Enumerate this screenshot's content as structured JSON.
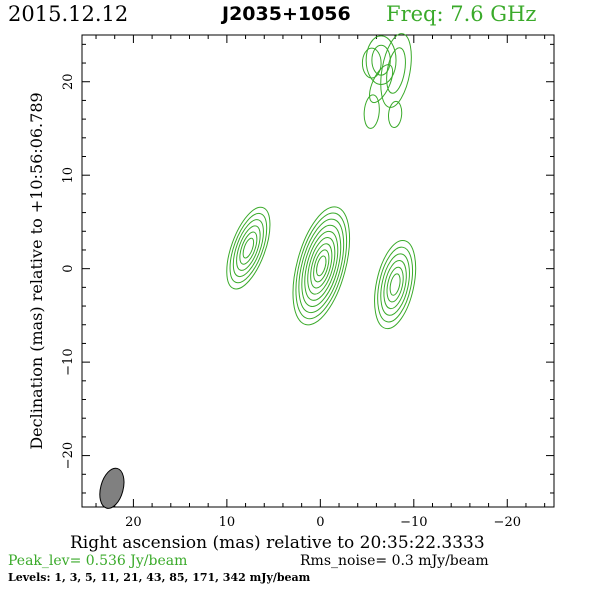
{
  "header": {
    "date": "2015.12.12",
    "source": "J2035+1056",
    "freq": "Freq: 7.6 GHz"
  },
  "footer": {
    "peak": "Peak_lev=  0.536 Jy/beam",
    "rms": "Rms_noise=  0.3 mJy/beam",
    "levels": "Levels:   1,   3,   5,   11,   21,   43,   85,  171,  342  mJy/beam"
  },
  "colors": {
    "contour": "#3aaa2a",
    "beam": "#808080",
    "axes": "#000000"
  },
  "chart_data": {
    "type": "contour",
    "xlabel": "Right ascension (mas) relative to 20:35:22.3333",
    "ylabel": "Declination (mas) relative to +10:56:06.789",
    "xlim": [
      25.5,
      -25
    ],
    "ylim": [
      -25.5,
      25
    ],
    "x_reversed": true,
    "xticks": [
      20,
      10,
      0,
      -10,
      -20
    ],
    "yticks": [
      20,
      10,
      0,
      -10,
      -20
    ],
    "xtick_labels": [
      "20",
      "10",
      "0",
      "−10",
      "−20"
    ],
    "ytick_labels": [
      "20",
      "10",
      "0",
      "−10",
      "−20"
    ],
    "components": [
      {
        "name": "core",
        "x": -0.1,
        "y": 0.3,
        "major": 6.5,
        "minor": 2.6,
        "tilt_deg": 15,
        "n_contours": 9
      },
      {
        "name": "east-jet",
        "x": 7.7,
        "y": 2.2,
        "major": 4.6,
        "minor": 1.8,
        "tilt_deg": 20,
        "n_contours": 6
      },
      {
        "name": "west-jet",
        "x": -8.0,
        "y": -1.7,
        "major": 4.8,
        "minor": 2.0,
        "tilt_deg": 12,
        "n_contours": 6
      },
      {
        "name": "north-a",
        "x": -6.5,
        "y": 22.3,
        "major": 2.6,
        "minor": 1.6,
        "tilt_deg": 0,
        "n_contours": 2
      },
      {
        "name": "north-b",
        "x": -8.1,
        "y": 21.2,
        "major": 4.0,
        "minor": 1.5,
        "tilt_deg": 10,
        "n_contours": 2
      },
      {
        "name": "north-c",
        "x": -5.5,
        "y": 22.0,
        "major": 1.6,
        "minor": 1.0,
        "tilt_deg": 0,
        "n_contours": 1
      },
      {
        "name": "north-d",
        "x": -6.5,
        "y": 19.8,
        "major": 2.2,
        "minor": 0.9,
        "tilt_deg": 25,
        "n_contours": 1
      },
      {
        "name": "north-e",
        "x": -5.5,
        "y": 16.8,
        "major": 1.8,
        "minor": 0.8,
        "tilt_deg": 5,
        "n_contours": 1
      },
      {
        "name": "north-f",
        "x": -8.0,
        "y": 16.5,
        "major": 1.4,
        "minor": 0.7,
        "tilt_deg": 5,
        "n_contours": 1
      }
    ],
    "beam": {
      "x": 22.3,
      "y": -23.5,
      "major": 2.2,
      "minor": 1.2,
      "tilt_deg": 15
    }
  }
}
